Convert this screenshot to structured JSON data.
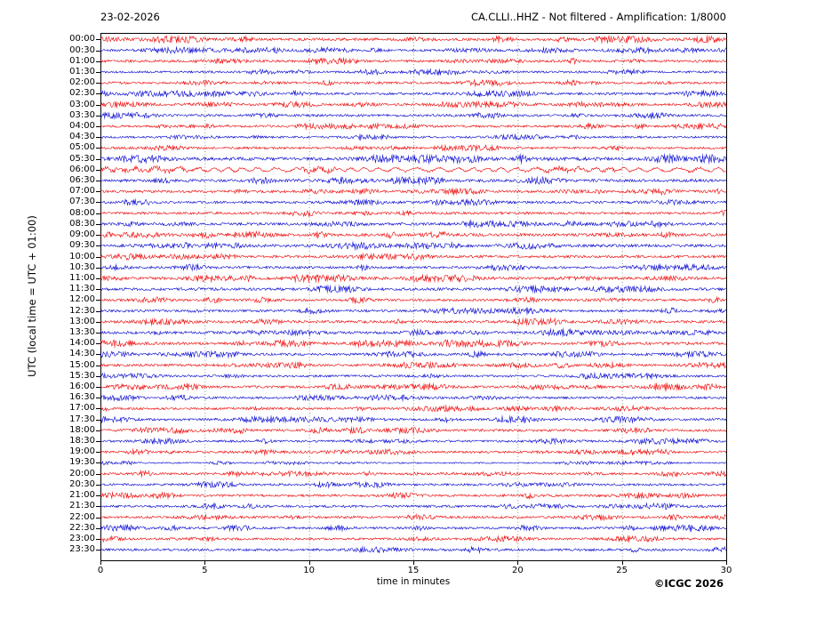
{
  "header": {
    "date": "23-02-2026",
    "title": "CA.CLLI..HHZ - Not filtered - Amplification: 1/8000"
  },
  "footer": {
    "credit": "©ICGC 2026"
  },
  "chart_data": {
    "type": "line",
    "subtype": "helicorder-drum-plot",
    "station": "CA.CLLI..HHZ",
    "filter": "Not filtered",
    "amplification": "1/8000",
    "date": "23-02-2026",
    "title": "CA.CLLI..HHZ - Not filtered - Amplification: 1/8000",
    "xlabel": "time in minutes",
    "ylabel": "UTC (local time = UTC + 01:00)",
    "xlim": [
      0,
      30
    ],
    "x_ticks": [
      0,
      5,
      10,
      15,
      20,
      25,
      30
    ],
    "minutes_per_row": 30,
    "grid": "vertical dotted lines at 5-minute intervals",
    "legend": "none",
    "colors": {
      "even_row_trace": "#ee0000",
      "odd_row_trace": "#0000d0",
      "grid": "#666666",
      "frame": "#000000"
    },
    "rows": [
      {
        "label": "00:00",
        "color": "red",
        "amplitude": 1.7,
        "character": "noise"
      },
      {
        "label": "00:30",
        "color": "blue",
        "amplitude": 1.5,
        "character": "noise"
      },
      {
        "label": "01:00",
        "color": "red",
        "amplitude": 1.5,
        "character": "noise"
      },
      {
        "label": "01:30",
        "color": "blue",
        "amplitude": 1.4,
        "character": "noise"
      },
      {
        "label": "02:00",
        "color": "red",
        "amplitude": 1.5,
        "character": "noise"
      },
      {
        "label": "02:30",
        "color": "blue",
        "amplitude": 1.5,
        "character": "noise"
      },
      {
        "label": "03:00",
        "color": "red",
        "amplitude": 1.4,
        "character": "noise"
      },
      {
        "label": "03:30",
        "color": "blue",
        "amplitude": 1.5,
        "character": "noise"
      },
      {
        "label": "04:00",
        "color": "red",
        "amplitude": 1.4,
        "character": "noise"
      },
      {
        "label": "04:30",
        "color": "blue",
        "amplitude": 1.3,
        "character": "noise"
      },
      {
        "label": "05:00",
        "color": "red",
        "amplitude": 1.4,
        "character": "noise"
      },
      {
        "label": "05:30",
        "color": "blue",
        "amplitude": 2.1,
        "character": "noise"
      },
      {
        "label": "06:00",
        "color": "red",
        "amplitude": 2.6,
        "character": "low-frequency wavy signal, largest amplitude of the day"
      },
      {
        "label": "06:30",
        "color": "blue",
        "amplitude": 1.8,
        "character": "noise"
      },
      {
        "label": "07:00",
        "color": "red",
        "amplitude": 1.6,
        "character": "noise"
      },
      {
        "label": "07:30",
        "color": "blue",
        "amplitude": 1.6,
        "character": "noise"
      },
      {
        "label": "08:00",
        "color": "red",
        "amplitude": 1.5,
        "character": "noise"
      },
      {
        "label": "08:30",
        "color": "blue",
        "amplitude": 1.6,
        "character": "noise"
      },
      {
        "label": "09:00",
        "color": "red",
        "amplitude": 1.8,
        "character": "noise"
      },
      {
        "label": "09:30",
        "color": "blue",
        "amplitude": 1.8,
        "character": "noise"
      },
      {
        "label": "10:00",
        "color": "red",
        "amplitude": 1.6,
        "character": "noise"
      },
      {
        "label": "10:30",
        "color": "blue",
        "amplitude": 1.5,
        "character": "noise"
      },
      {
        "label": "11:00",
        "color": "red",
        "amplitude": 1.7,
        "character": "noise"
      },
      {
        "label": "11:30",
        "color": "blue",
        "amplitude": 1.7,
        "character": "noise"
      },
      {
        "label": "12:00",
        "color": "red",
        "amplitude": 1.5,
        "character": "noise"
      },
      {
        "label": "12:30",
        "color": "blue",
        "amplitude": 1.5,
        "character": "noise"
      },
      {
        "label": "13:00",
        "color": "red",
        "amplitude": 1.6,
        "character": "noise"
      },
      {
        "label": "13:30",
        "color": "blue",
        "amplitude": 1.7,
        "character": "noise"
      },
      {
        "label": "14:00",
        "color": "red",
        "amplitude": 1.7,
        "character": "noise"
      },
      {
        "label": "14:30",
        "color": "blue",
        "amplitude": 1.5,
        "character": "noise"
      },
      {
        "label": "15:00",
        "color": "red",
        "amplitude": 1.5,
        "character": "noise"
      },
      {
        "label": "15:30",
        "color": "blue",
        "amplitude": 1.4,
        "character": "noise"
      },
      {
        "label": "16:00",
        "color": "red",
        "amplitude": 1.5,
        "character": "noise"
      },
      {
        "label": "16:30",
        "color": "blue",
        "amplitude": 1.4,
        "character": "noise"
      },
      {
        "label": "17:00",
        "color": "red",
        "amplitude": 1.4,
        "character": "noise"
      },
      {
        "label": "17:30",
        "color": "blue",
        "amplitude": 1.5,
        "character": "noise"
      },
      {
        "label": "18:00",
        "color": "red",
        "amplitude": 1.5,
        "character": "noise"
      },
      {
        "label": "18:30",
        "color": "blue",
        "amplitude": 1.4,
        "character": "noise"
      },
      {
        "label": "19:00",
        "color": "red",
        "amplitude": 1.4,
        "character": "noise"
      },
      {
        "label": "19:30",
        "color": "blue",
        "amplitude": 0.9,
        "character": "quiet, lowest amplitude"
      },
      {
        "label": "20:00",
        "color": "red",
        "amplitude": 1.4,
        "character": "noise"
      },
      {
        "label": "20:30",
        "color": "blue",
        "amplitude": 1.4,
        "character": "noise"
      },
      {
        "label": "21:00",
        "color": "red",
        "amplitude": 1.5,
        "character": "noise"
      },
      {
        "label": "21:30",
        "color": "blue",
        "amplitude": 1.5,
        "character": "noise"
      },
      {
        "label": "22:00",
        "color": "red",
        "amplitude": 1.5,
        "character": "noise"
      },
      {
        "label": "22:30",
        "color": "blue",
        "amplitude": 1.5,
        "character": "noise"
      },
      {
        "label": "23:00",
        "color": "red",
        "amplitude": 1.4,
        "character": "noise"
      },
      {
        "label": "23:30",
        "color": "blue",
        "amplitude": 1.5,
        "character": "noise"
      }
    ]
  }
}
